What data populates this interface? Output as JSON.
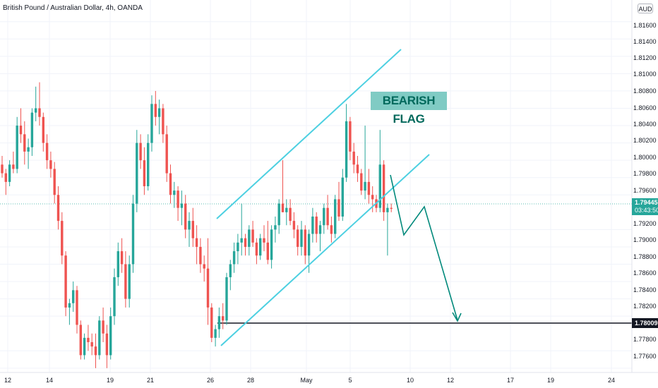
{
  "header": {
    "title": "British Pound / Australian Dollar, 4h, OANDA",
    "currency_button": "AUD"
  },
  "annotation": {
    "label": "BEARISH FLAG"
  },
  "price_scale": {
    "ticks": [
      "1.81600",
      "1.81400",
      "1.81200",
      "1.81000",
      "1.80800",
      "1.80600",
      "1.80400",
      "1.80200",
      "1.80000",
      "1.79800",
      "1.79600",
      "1.79200",
      "1.79000",
      "1.78800",
      "1.78600",
      "1.78400",
      "1.78200",
      "1.77800",
      "1.77600"
    ],
    "current_price": "1.79445",
    "countdown": "03:43:50",
    "target_price": "1.78009"
  },
  "time_scale": {
    "ticks": [
      "12",
      "14",
      "19",
      "21",
      "26",
      "28",
      "May",
      "5",
      "10",
      "12",
      "17",
      "19",
      "24"
    ]
  },
  "colors": {
    "up": "#26a69a",
    "down": "#ef5350",
    "channel": "#4dd0e1",
    "projection": "#00897b",
    "target_line": "#131722",
    "label_bg": "#80cbc4",
    "label_text": "#00695c"
  },
  "chart_data": {
    "type": "candlestick",
    "symbol": "GBPAUD",
    "timeframe": "4h",
    "y_range": [
      1.7755,
      1.8185
    ],
    "current_price": 1.79445,
    "target_level": 1.78009,
    "candles": [
      [
        1.7995,
        1.8005,
        1.798,
        1.7985
      ],
      [
        1.7985,
        1.799,
        1.796,
        1.7975
      ],
      [
        1.7975,
        1.8,
        1.797,
        1.7995
      ],
      [
        1.7995,
        1.801,
        1.7985,
        1.799
      ],
      [
        1.799,
        1.805,
        1.7985,
        1.804
      ],
      [
        1.804,
        1.806,
        1.802,
        1.803
      ],
      [
        1.803,
        1.8045,
        1.7995,
        1.801
      ],
      [
        1.801,
        1.8025,
        1.799,
        1.8015
      ],
      [
        1.8015,
        1.806,
        1.8005,
        1.8055
      ],
      [
        1.8055,
        1.8085,
        1.8045,
        1.806
      ],
      [
        1.806,
        1.809,
        1.804,
        1.805
      ],
      [
        1.805,
        1.8055,
        1.801,
        1.802
      ],
      [
        1.802,
        1.803,
        1.799,
        1.8
      ],
      [
        1.8,
        1.801,
        1.798,
        1.799
      ],
      [
        1.799,
        1.7998,
        1.795,
        1.796
      ],
      [
        1.796,
        1.797,
        1.792,
        1.793
      ],
      [
        1.793,
        1.794,
        1.788,
        1.789
      ],
      [
        1.789,
        1.7895,
        1.782,
        1.783
      ],
      [
        1.783,
        1.784,
        1.781,
        1.7835
      ],
      [
        1.7835,
        1.786,
        1.7825,
        1.785
      ],
      [
        1.785,
        1.7855,
        1.78,
        1.781
      ],
      [
        1.781,
        1.7815,
        1.777,
        1.7775
      ],
      [
        1.7775,
        1.78,
        1.777,
        1.7795
      ],
      [
        1.7795,
        1.781,
        1.778,
        1.779
      ],
      [
        1.779,
        1.78,
        1.7775,
        1.7785
      ],
      [
        1.7785,
        1.78,
        1.776,
        1.7775
      ],
      [
        1.7775,
        1.782,
        1.777,
        1.7815
      ],
      [
        1.7815,
        1.783,
        1.779,
        1.78
      ],
      [
        1.78,
        1.781,
        1.776,
        1.7775
      ],
      [
        1.7775,
        1.783,
        1.777,
        1.782
      ],
      [
        1.782,
        1.7875,
        1.781,
        1.7865
      ],
      [
        1.7865,
        1.7905,
        1.7855,
        1.7895
      ],
      [
        1.7895,
        1.791,
        1.787,
        1.788
      ],
      [
        1.788,
        1.7895,
        1.783,
        1.784
      ],
      [
        1.784,
        1.789,
        1.783,
        1.788
      ],
      [
        1.788,
        1.796,
        1.787,
        1.795
      ],
      [
        1.795,
        1.8035,
        1.794,
        1.802
      ],
      [
        1.802,
        1.803,
        1.799,
        1.8
      ],
      [
        1.8,
        1.8015,
        1.796,
        1.797
      ],
      [
        1.797,
        1.803,
        1.7965,
        1.802
      ],
      [
        1.802,
        1.8075,
        1.801,
        1.8065
      ],
      [
        1.8065,
        1.808,
        1.804,
        1.805
      ],
      [
        1.805,
        1.807,
        1.803,
        1.806
      ],
      [
        1.806,
        1.8065,
        1.802,
        1.803
      ],
      [
        1.803,
        1.804,
        1.7975,
        1.7985
      ],
      [
        1.7985,
        1.7995,
        1.795,
        1.796
      ],
      [
        1.796,
        1.7975,
        1.7945,
        1.7965
      ],
      [
        1.7965,
        1.797,
        1.793,
        1.7945
      ],
      [
        1.7945,
        1.7965,
        1.7925,
        1.795
      ],
      [
        1.795,
        1.796,
        1.791,
        1.792
      ],
      [
        1.792,
        1.794,
        1.79,
        1.793
      ],
      [
        1.793,
        1.7945,
        1.79,
        1.791
      ],
      [
        1.791,
        1.7925,
        1.788,
        1.79
      ],
      [
        1.79,
        1.791,
        1.787,
        1.788
      ],
      [
        1.788,
        1.789,
        1.786,
        1.7875
      ],
      [
        1.7875,
        1.791,
        1.781,
        1.783
      ],
      [
        1.783,
        1.7835,
        1.779,
        1.7795
      ],
      [
        1.7795,
        1.781,
        1.7785,
        1.7805
      ],
      [
        1.7805,
        1.783,
        1.7795,
        1.782
      ],
      [
        1.782,
        1.7835,
        1.7805,
        1.7815
      ],
      [
        1.7815,
        1.787,
        1.781,
        1.7865
      ],
      [
        1.7865,
        1.7885,
        1.785,
        1.788
      ],
      [
        1.788,
        1.7905,
        1.787,
        1.7895
      ],
      [
        1.7895,
        1.7915,
        1.788,
        1.7905
      ],
      [
        1.7905,
        1.795,
        1.789,
        1.791
      ],
      [
        1.791,
        1.7915,
        1.789,
        1.79
      ],
      [
        1.79,
        1.7925,
        1.789,
        1.792
      ],
      [
        1.792,
        1.793,
        1.79,
        1.7905
      ],
      [
        1.7905,
        1.791,
        1.788,
        1.789
      ],
      [
        1.789,
        1.7915,
        1.7885,
        1.791
      ],
      [
        1.791,
        1.7925,
        1.7895,
        1.7905
      ],
      [
        1.7905,
        1.793,
        1.788,
        1.7885
      ],
      [
        1.7885,
        1.7925,
        1.7875,
        1.792
      ],
      [
        1.792,
        1.7935,
        1.7905,
        1.7925
      ],
      [
        1.7925,
        1.7955,
        1.7915,
        1.795
      ],
      [
        1.795,
        1.8,
        1.794,
        1.794
      ],
      [
        1.794,
        1.7955,
        1.7925,
        1.7945
      ],
      [
        1.7945,
        1.7955,
        1.7925,
        1.793
      ],
      [
        1.793,
        1.794,
        1.791,
        1.792
      ],
      [
        1.792,
        1.7925,
        1.789,
        1.79
      ],
      [
        1.79,
        1.793,
        1.789,
        1.792
      ],
      [
        1.792,
        1.7925,
        1.788,
        1.789
      ],
      [
        1.789,
        1.792,
        1.787,
        1.7915
      ],
      [
        1.7915,
        1.7945,
        1.7905,
        1.7935
      ],
      [
        1.7935,
        1.794,
        1.7905,
        1.7915
      ],
      [
        1.7915,
        1.793,
        1.7895,
        1.7925
      ],
      [
        1.7925,
        1.795,
        1.7915,
        1.7945
      ],
      [
        1.7945,
        1.796,
        1.792,
        1.7925
      ],
      [
        1.7925,
        1.7935,
        1.7905,
        1.7915
      ],
      [
        1.7915,
        1.796,
        1.791,
        1.7955
      ],
      [
        1.7955,
        1.7975,
        1.793,
        1.7935
      ],
      [
        1.7935,
        1.799,
        1.793,
        1.798
      ],
      [
        1.798,
        1.8065,
        1.7975,
        1.8045
      ],
      [
        1.8045,
        1.805,
        1.8,
        1.801
      ],
      [
        1.801,
        1.802,
        1.7985,
        1.7995
      ],
      [
        1.7995,
        1.8005,
        1.7975,
        1.7985
      ],
      [
        1.7985,
        1.799,
        1.796,
        1.7965
      ],
      [
        1.7965,
        1.804,
        1.7955,
        1.7975
      ],
      [
        1.7975,
        1.799,
        1.795,
        1.796
      ],
      [
        1.796,
        1.797,
        1.794,
        1.7955
      ],
      [
        1.7955,
        1.796,
        1.794,
        1.7945
      ],
      [
        1.7945,
        1.8035,
        1.794,
        1.7995
      ],
      [
        1.7995,
        1.8,
        1.793,
        1.794
      ],
      [
        1.794,
        1.795,
        1.789,
        1.7945
      ],
      [
        1.7945,
        1.795,
        1.794,
        1.7944
      ]
    ]
  }
}
